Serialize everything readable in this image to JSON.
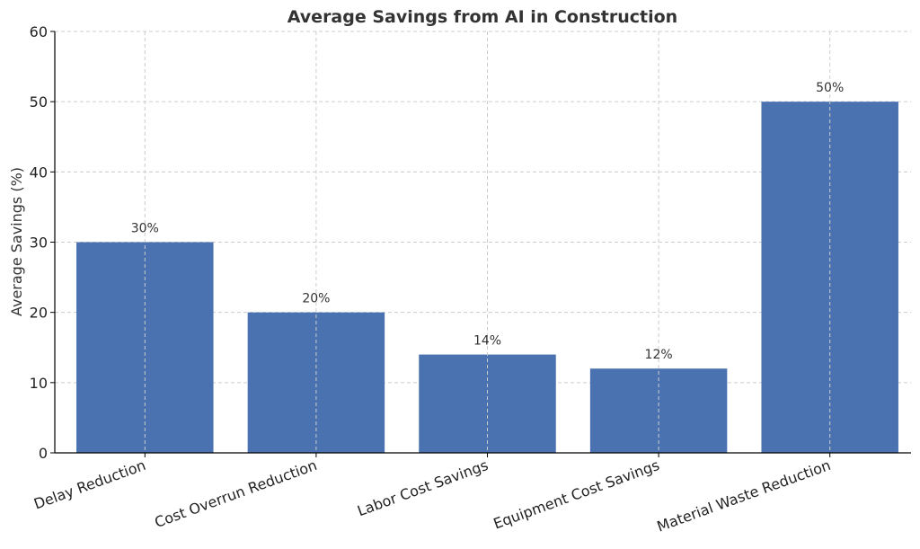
{
  "chart_data": {
    "type": "bar",
    "title": "Average Savings from AI in Construction",
    "xlabel": "",
    "ylabel": "Average Savings (%)",
    "categories": [
      "Delay Reduction",
      "Cost Overrun Reduction",
      "Labor Cost Savings",
      "Equipment Cost Savings",
      "Material Waste Reduction"
    ],
    "values": [
      30,
      20,
      14,
      12,
      50
    ],
    "data_labels": [
      "30%",
      "20%",
      "14%",
      "12%",
      "50%"
    ],
    "ylim": [
      0,
      60
    ],
    "yticks": [
      0,
      10,
      20,
      30,
      40,
      50,
      60
    ],
    "grid": true,
    "bar_color": "#4a72b0"
  }
}
